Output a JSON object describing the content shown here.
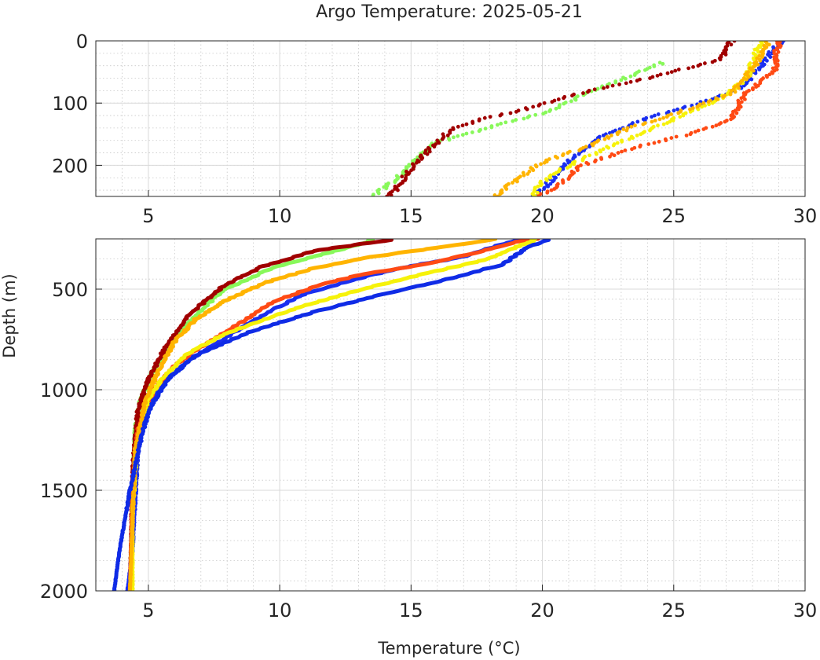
{
  "chart_data": {
    "type": "scatter",
    "title": "Argo Temperature: 2025-05-21",
    "xlabel": "Temperature (°C)",
    "ylabel": "Depth (m)",
    "y_reversed": true,
    "grid": true,
    "minor_grid": true,
    "panels": [
      {
        "xlim": [
          3,
          30
        ],
        "ylim": [
          0,
          250
        ],
        "xticks": [
          "5",
          "10",
          "15",
          "20",
          "25",
          "30"
        ],
        "yticks": [
          "0",
          "100",
          "200"
        ],
        "marker": "dot"
      },
      {
        "xlim": [
          3,
          30
        ],
        "ylim": [
          250,
          2000
        ],
        "xticks": [
          "5",
          "10",
          "15",
          "20",
          "25",
          "30"
        ],
        "yticks": [
          "500",
          "1000",
          "1500",
          "2000"
        ],
        "marker": "thick-line"
      }
    ],
    "series": [
      {
        "color": "#88f85a",
        "points": [
          [
            24.6,
            35
          ],
          [
            23.4,
            55
          ],
          [
            22.2,
            75
          ],
          [
            20.1,
            115
          ],
          [
            17.9,
            140
          ],
          [
            15.9,
            165
          ],
          [
            15.0,
            200
          ],
          [
            14.2,
            230
          ],
          [
            13.5,
            250
          ],
          [
            13.4,
            265
          ],
          [
            11.5,
            330
          ],
          [
            9.6,
            400
          ],
          [
            7.8,
            510
          ],
          [
            6.3,
            700
          ],
          [
            5.2,
            900
          ],
          [
            4.7,
            1050
          ],
          [
            4.5,
            1200
          ],
          [
            4.4,
            1500
          ],
          [
            4.3,
            2000
          ]
        ]
      },
      {
        "color": "#a00000",
        "points": [
          [
            27.2,
            0
          ],
          [
            26.8,
            30
          ],
          [
            24.0,
            60
          ],
          [
            21.8,
            80
          ],
          [
            19.3,
            110
          ],
          [
            17.8,
            125
          ],
          [
            16.6,
            140
          ],
          [
            15.8,
            170
          ],
          [
            15.2,
            195
          ],
          [
            14.8,
            215
          ],
          [
            14.3,
            245
          ],
          [
            14.2,
            250
          ],
          [
            14.2,
            255
          ],
          [
            11.3,
            310
          ],
          [
            9.3,
            390
          ],
          [
            7.9,
            480
          ],
          [
            6.6,
            620
          ],
          [
            5.6,
            800
          ],
          [
            5.0,
            950
          ],
          [
            4.6,
            1100
          ],
          [
            4.4,
            1400
          ],
          [
            4.3,
            2000
          ]
        ]
      },
      {
        "color": "#1a2ff0",
        "points": [
          [
            29.1,
            0
          ],
          [
            28.5,
            30
          ],
          [
            27.6,
            75
          ],
          [
            26.0,
            100
          ],
          [
            24.3,
            120
          ],
          [
            22.4,
            150
          ],
          [
            21.1,
            190
          ],
          [
            20.2,
            230
          ],
          [
            19.7,
            250
          ],
          [
            19.0,
            255
          ],
          [
            16.8,
            345
          ],
          [
            15.0,
            385
          ],
          [
            13.5,
            430
          ],
          [
            11.0,
            520
          ],
          [
            9.6,
            610
          ],
          [
            8.2,
            720
          ],
          [
            6.6,
            850
          ],
          [
            5.6,
            960
          ],
          [
            4.9,
            1100
          ],
          [
            4.6,
            1300
          ],
          [
            4.4,
            1800
          ],
          [
            4.2,
            2000
          ]
        ]
      },
      {
        "color": "#ff4a14",
        "points": [
          [
            29.0,
            0
          ],
          [
            28.8,
            50
          ],
          [
            27.7,
            85
          ],
          [
            27.2,
            125
          ],
          [
            25.6,
            150
          ],
          [
            23.6,
            170
          ],
          [
            21.5,
            200
          ],
          [
            20.7,
            230
          ],
          [
            19.8,
            250
          ],
          [
            19.2,
            260
          ],
          [
            17.1,
            330
          ],
          [
            15.6,
            375
          ],
          [
            13.2,
            425
          ],
          [
            11.5,
            480
          ],
          [
            9.8,
            560
          ],
          [
            8.6,
            660
          ],
          [
            7.2,
            770
          ],
          [
            6.0,
            880
          ],
          [
            5.2,
            1000
          ],
          [
            4.6,
            1200
          ],
          [
            4.4,
            1500
          ],
          [
            4.3,
            2000
          ]
        ]
      },
      {
        "color": "#f6f20a",
        "points": [
          [
            28.3,
            0
          ],
          [
            27.8,
            60
          ],
          [
            26.9,
            90
          ],
          [
            25.3,
            120
          ],
          [
            23.1,
            160
          ],
          [
            21.0,
            200
          ],
          [
            19.9,
            230
          ],
          [
            19.7,
            250
          ],
          [
            19.6,
            260
          ],
          [
            17.8,
            355
          ],
          [
            15.3,
            430
          ],
          [
            13.0,
            505
          ],
          [
            11.0,
            580
          ],
          [
            9.2,
            660
          ],
          [
            7.8,
            730
          ],
          [
            6.5,
            820
          ],
          [
            5.5,
            950
          ],
          [
            5.0,
            1050
          ],
          [
            4.6,
            1250
          ],
          [
            4.4,
            1600
          ],
          [
            4.4,
            2000
          ]
        ]
      },
      {
        "color": "#ffb400",
        "points": [
          [
            28.6,
            0
          ],
          [
            28.1,
            40
          ],
          [
            27.2,
            85
          ],
          [
            25.2,
            115
          ],
          [
            23.3,
            140
          ],
          [
            21.7,
            170
          ],
          [
            20.0,
            195
          ],
          [
            19.1,
            220
          ],
          [
            18.2,
            250
          ],
          [
            18.0,
            255
          ],
          [
            15.4,
            305
          ],
          [
            13.2,
            345
          ],
          [
            11.2,
            400
          ],
          [
            9.4,
            470
          ],
          [
            7.9,
            560
          ],
          [
            6.8,
            650
          ],
          [
            6.0,
            760
          ],
          [
            5.4,
            900
          ],
          [
            4.9,
            1050
          ],
          [
            4.5,
            1300
          ],
          [
            4.3,
            2000
          ]
        ]
      },
      {
        "color": "#0f2be6",
        "points": [
          [
            20.3,
            255
          ],
          [
            19.5,
            285
          ],
          [
            18.9,
            340
          ],
          [
            18.4,
            380
          ],
          [
            16.4,
            450
          ],
          [
            13.8,
            530
          ],
          [
            11.4,
            610
          ],
          [
            8.9,
            710
          ],
          [
            6.8,
            830
          ],
          [
            5.8,
            940
          ],
          [
            5.1,
            1080
          ],
          [
            4.8,
            1200
          ],
          [
            4.3,
            1500
          ],
          [
            3.9,
            1800
          ],
          [
            3.7,
            2000
          ]
        ]
      }
    ]
  }
}
